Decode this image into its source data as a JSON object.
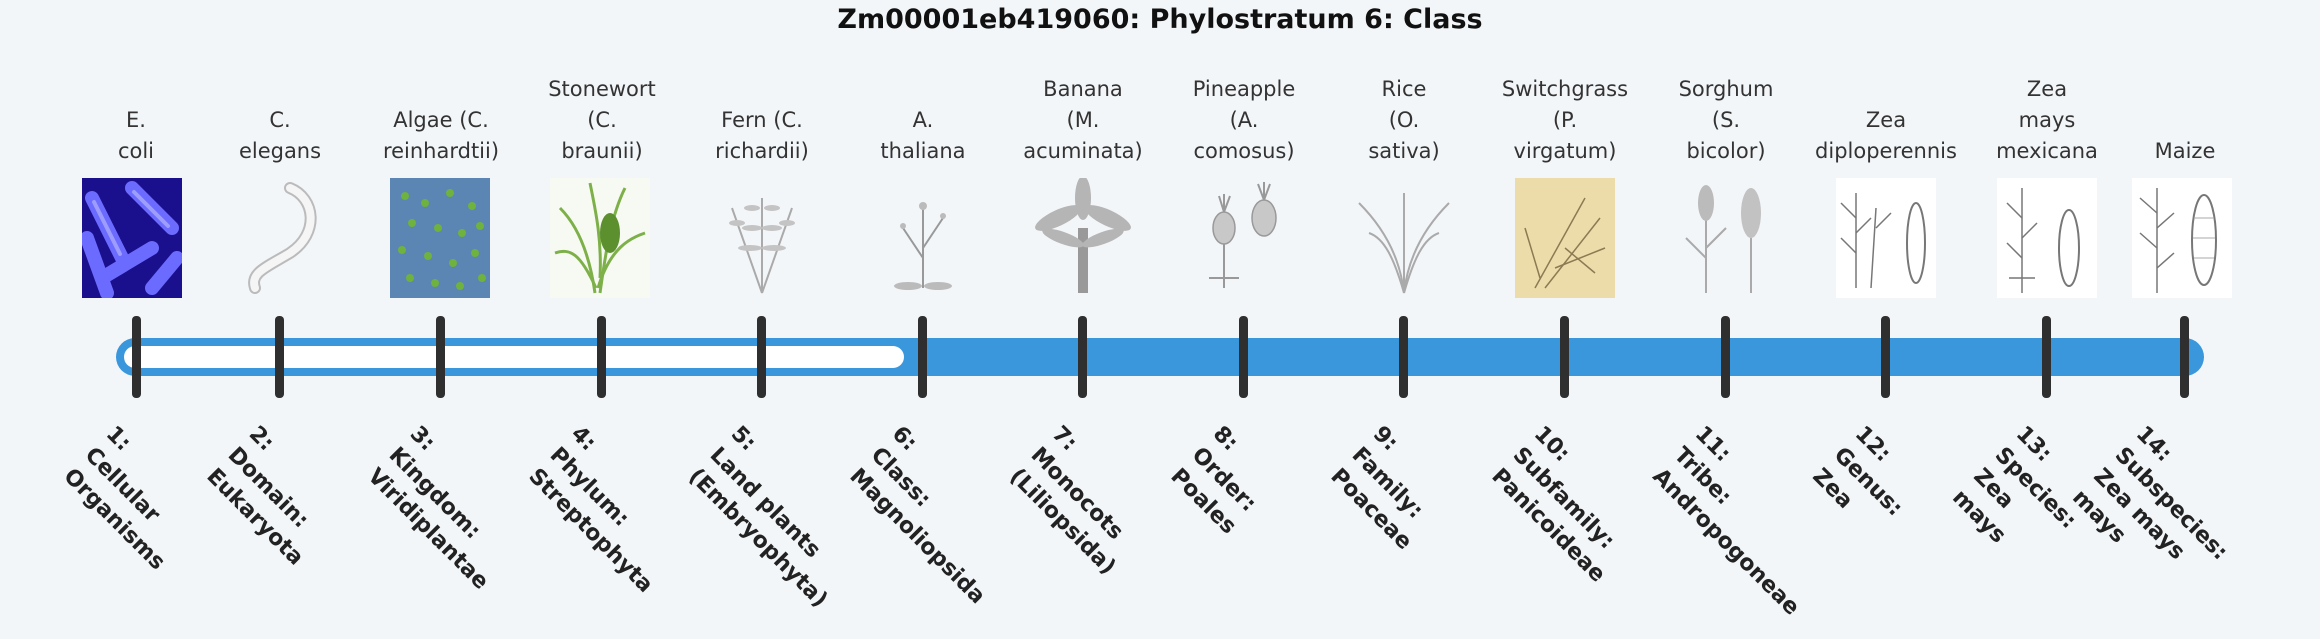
{
  "title": "Zm00001eb419060: Phylostratum 6: Class",
  "colors": {
    "filled": "#3a97dc",
    "unfilled": "#ffffff",
    "tick": "#2f2f2f"
  },
  "current_stratum": 6,
  "strata": [
    {
      "organism": "E.\ncoli",
      "rank": "1:\nCellular\nOrganisms",
      "image": "ecoli-image"
    },
    {
      "organism": "C.\nelegans",
      "rank": "2:\nDomain:\nEukaryota",
      "image": "worm-image"
    },
    {
      "organism": "Algae (C.\nreinhardtii)",
      "rank": "3:\nKingdom:\nViridiplantae",
      "image": "algae-image"
    },
    {
      "organism": "Stonewort\n(C.\nbraunii)",
      "rank": "4:\nPhylum:\nStreptophyta",
      "image": "stonewort-image"
    },
    {
      "organism": "Fern (C.\nrichardii)",
      "rank": "5:\nLand plants\n(Embryophyta)",
      "image": "fern-image"
    },
    {
      "organism": "A.\nthaliana",
      "rank": "6:\nClass:\nMagnoliopsida",
      "image": "arabidopsis-image"
    },
    {
      "organism": "Banana\n(M.\nacuminata)",
      "rank": "7:\nMonocots\n(Liliopsida)",
      "image": "banana-image"
    },
    {
      "organism": "Pineapple\n(A.\ncomosus)",
      "rank": "8:\nOrder:\nPoales",
      "image": "pineapple-image"
    },
    {
      "organism": "Rice\n(O.\nsativa)",
      "rank": "9:\nFamily:\nPoaceae",
      "image": "rice-image"
    },
    {
      "organism": "Switchgrass\n(P.\nvirgatum)",
      "rank": "10:\nSubfamily:\nPanicoideae",
      "image": "switchgrass-image"
    },
    {
      "organism": "Sorghum\n(S.\nbicolor)",
      "rank": "11:\nTribe:\nAndropogoneae",
      "image": "sorghum-image"
    },
    {
      "organism": "Zea\ndiploperennis",
      "rank": "12:\nGenus:\nZea",
      "image": "zea-diploperennis-image"
    },
    {
      "organism": "Zea\nmays\nmexicana",
      "rank": "13:\nSpecies:\nZea\nmays",
      "image": "zea-mexicana-image"
    },
    {
      "organism": "Maize",
      "rank": "14:\nSubspecies:\nZea mays\nmays",
      "image": "maize-image"
    }
  ]
}
